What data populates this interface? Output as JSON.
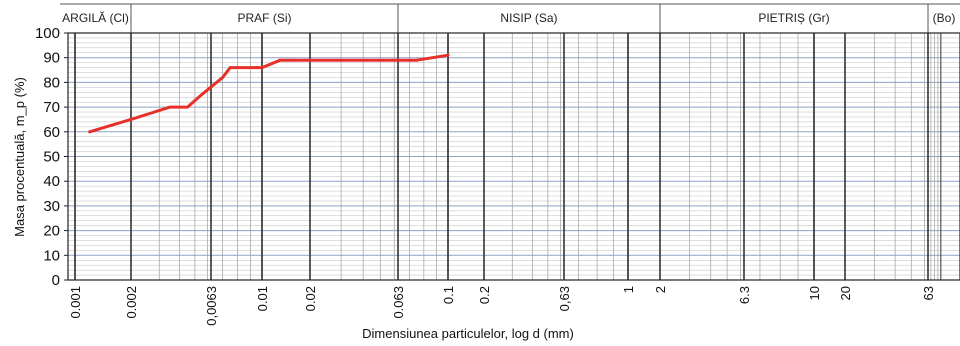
{
  "chart_data": {
    "type": "line",
    "title": "",
    "xlabel": "Dimensiunea particulelor, log d (mm)",
    "ylabel": "Masa procentuală, m_p (%)",
    "x_scale": "log",
    "xlim": [
      0.001,
      100
    ],
    "ylim": [
      0,
      100
    ],
    "y_ticks": [
      0,
      10,
      20,
      30,
      40,
      50,
      60,
      70,
      80,
      90,
      100
    ],
    "x_tick_labels": [
      {
        "value": 0.001,
        "label": "0.001"
      },
      {
        "value": 0.002,
        "label": "0.002"
      },
      {
        "value": 0.0063,
        "label": "0,0063"
      },
      {
        "value": 0.01,
        "label": "0.01"
      },
      {
        "value": 0.02,
        "label": "0.02"
      },
      {
        "value": 0.063,
        "label": "0.063"
      },
      {
        "value": 0.1,
        "label": "0.1"
      },
      {
        "value": 0.2,
        "label": "0.2"
      },
      {
        "value": 0.63,
        "label": "0,63"
      },
      {
        "value": 1,
        "label": "1"
      },
      {
        "value": 2,
        "label": "2"
      },
      {
        "value": 6.3,
        "label": "6.3"
      },
      {
        "value": 10,
        "label": "10"
      },
      {
        "value": 20,
        "label": "20"
      },
      {
        "value": 63,
        "label": "63"
      }
    ],
    "bands": [
      {
        "label": "ARGILĂ (Cl)",
        "from": 0.0006,
        "to": 0.002
      },
      {
        "label": "PRAF (Si)",
        "from": 0.002,
        "to": 0.063
      },
      {
        "label": "NISIP (Sa)",
        "from": 0.063,
        "to": 2
      },
      {
        "label": "PIETRIȘ (Gr)",
        "from": 2,
        "to": 63
      },
      {
        "label": "(Bo)",
        "from": 63,
        "to": 200
      }
    ],
    "grid": true,
    "series": [
      {
        "color": "#e8302a",
        "x": [
          0.0012,
          0.002,
          0.0025,
          0.0035,
          0.0045,
          0.0055,
          0.007,
          0.0075,
          0.0095,
          0.01,
          0.013,
          0.015,
          0.063,
          0.075,
          0.1
        ],
        "y": [
          60,
          65,
          67,
          70,
          70,
          75,
          82,
          86,
          86,
          86,
          89,
          89,
          89,
          89,
          91
        ]
      }
    ]
  }
}
